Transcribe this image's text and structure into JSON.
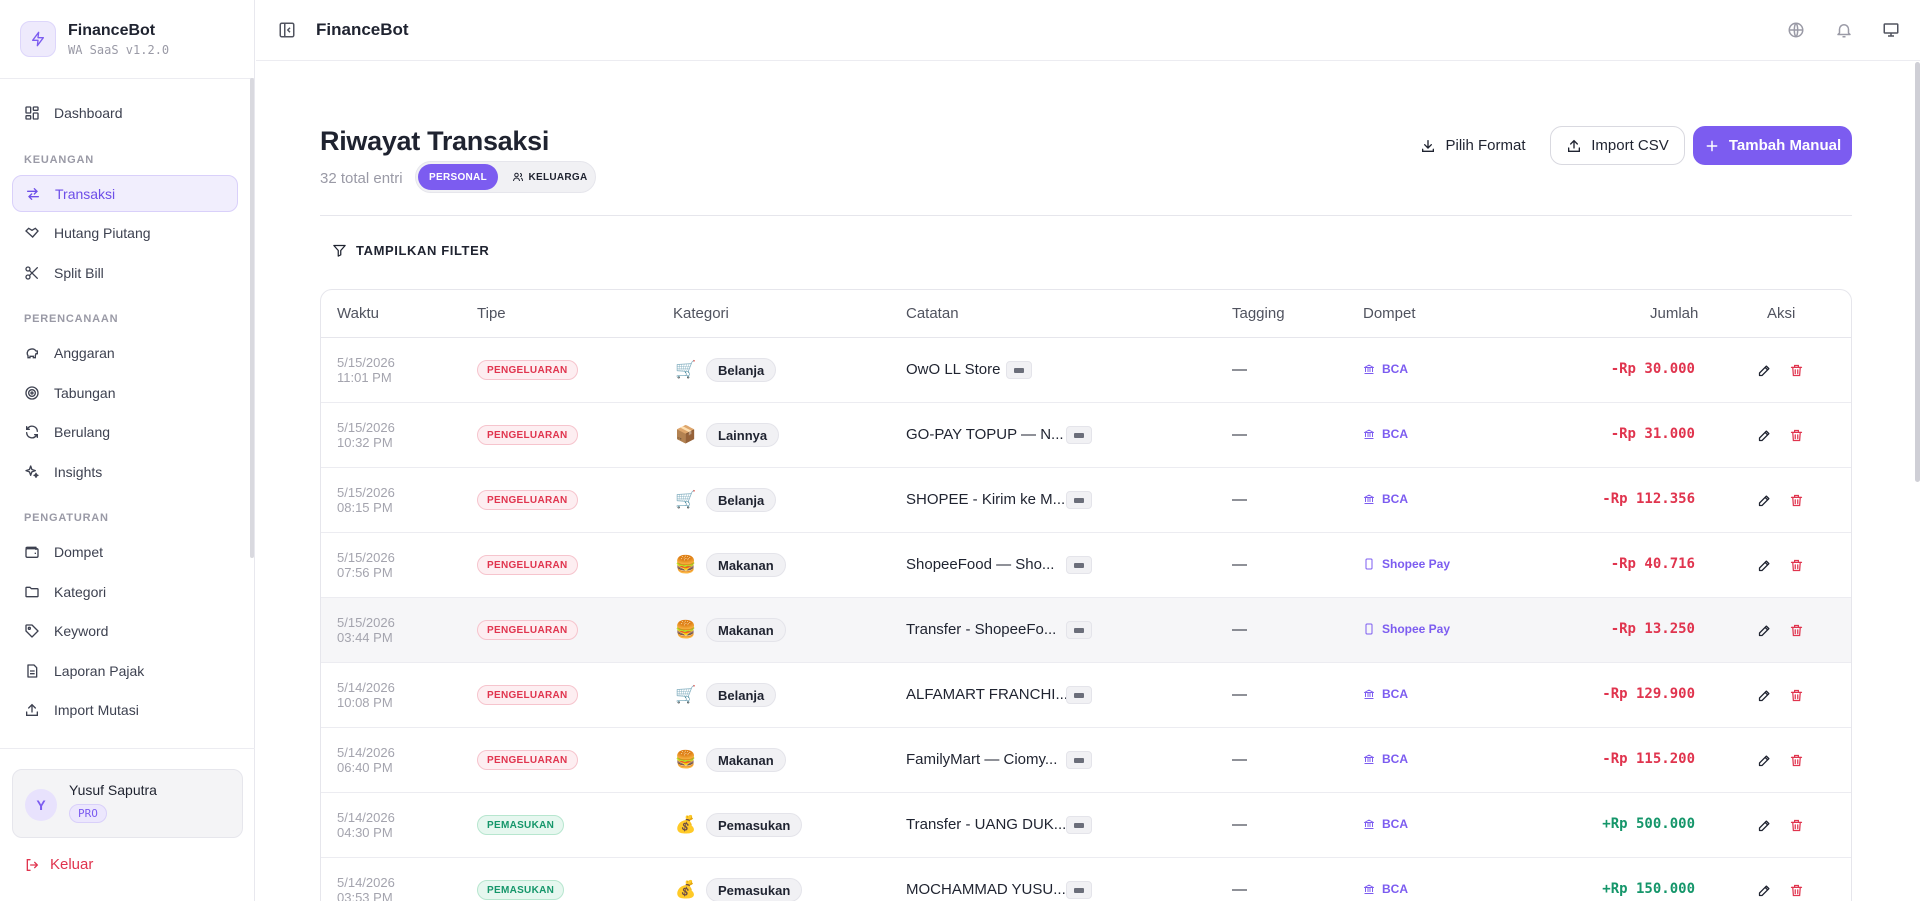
{
  "app": {
    "name": "FinanceBot",
    "version": "WA SaaS v1.2.0"
  },
  "sidebar": {
    "dashboard": "Dashboard",
    "section_keuangan": "KEUANGAN",
    "transaksi": "Transaksi",
    "hutang": "Hutang Piutang",
    "split": "Split Bill",
    "section_perencanaan": "PERENCANAAN",
    "anggaran": "Anggaran",
    "tabungan": "Tabungan",
    "berulang": "Berulang",
    "insights": "Insights",
    "section_pengaturan": "PENGATURAN",
    "dompet": "Dompet",
    "kategori": "Kategori",
    "keyword": "Keyword",
    "laporan": "Laporan Pajak",
    "import_mutasi": "Import Mutasi",
    "user_initial": "Y",
    "user_name": "Yusuf Saputra",
    "user_plan": "PRO",
    "logout": "Keluar"
  },
  "topbar": {
    "title": "FinanceBot"
  },
  "page": {
    "title": "Riwayat Transaksi",
    "entries": "32 total entri",
    "seg_personal": "PERSONAL",
    "seg_keluarga": "KELUARGA",
    "btn_format": "Pilih Format",
    "btn_import": "Import CSV",
    "btn_add": "Tambah Manual",
    "filter": "TAMPILKAN FILTER"
  },
  "table": {
    "headers": {
      "waktu": "Waktu",
      "tipe": "Tipe",
      "kategori": "Kategori",
      "catatan": "Catatan",
      "tagging": "Tagging",
      "dompet": "Dompet",
      "jumlah": "Jumlah",
      "aksi": "Aksi"
    },
    "rows": [
      {
        "date": "5/15/2026",
        "time": "11:01 PM",
        "type": "PENGELUARAN",
        "cat_icon": "🛒",
        "category": "Belanja",
        "note": "OwO LL Store",
        "tag": "—",
        "wallet": "BCA",
        "amount": "-Rp 30.000"
      },
      {
        "date": "5/15/2026",
        "time": "10:32 PM",
        "type": "PENGELUARAN",
        "cat_icon": "📦",
        "category": "Lainnya",
        "note": "GO-PAY TOPUP — N...",
        "tag": "—",
        "wallet": "BCA",
        "amount": "-Rp 31.000"
      },
      {
        "date": "5/15/2026",
        "time": "08:15 PM",
        "type": "PENGELUARAN",
        "cat_icon": "🛒",
        "category": "Belanja",
        "note": "SHOPEE - Kirim ke M...",
        "tag": "—",
        "wallet": "BCA",
        "amount": "-Rp 112.356"
      },
      {
        "date": "5/15/2026",
        "time": "07:56 PM",
        "type": "PENGELUARAN",
        "cat_icon": "🍔",
        "category": "Makanan",
        "note": "ShopeeFood — Sho...",
        "tag": "—",
        "wallet": "Shopee Pay",
        "amount": "-Rp 40.716"
      },
      {
        "date": "5/15/2026",
        "time": "03:44 PM",
        "type": "PENGELUARAN",
        "cat_icon": "🍔",
        "category": "Makanan",
        "note": "Transfer - ShopeeFo...",
        "tag": "—",
        "wallet": "Shopee Pay",
        "amount": "-Rp 13.250"
      },
      {
        "date": "5/14/2026",
        "time": "10:08 PM",
        "type": "PENGELUARAN",
        "cat_icon": "🛒",
        "category": "Belanja",
        "note": "ALFAMART FRANCHI...",
        "tag": "—",
        "wallet": "BCA",
        "amount": "-Rp 129.900"
      },
      {
        "date": "5/14/2026",
        "time": "06:40 PM",
        "type": "PENGELUARAN",
        "cat_icon": "🍔",
        "category": "Makanan",
        "note": "FamilyMart — Ciomy...",
        "tag": "—",
        "wallet": "BCA",
        "amount": "-Rp 115.200"
      },
      {
        "date": "5/14/2026",
        "time": "04:30 PM",
        "type": "PEMASUKAN",
        "cat_icon": "💰",
        "category": "Pemasukan",
        "note": "Transfer - UANG DUK...",
        "tag": "—",
        "wallet": "BCA",
        "amount": "+Rp 500.000"
      },
      {
        "date": "5/14/2026",
        "time": "03:53 PM",
        "type": "PEMASUKAN",
        "cat_icon": "💰",
        "category": "Pemasukan",
        "note": "MOCHAMMAD YUSU...",
        "tag": "—",
        "wallet": "BCA",
        "amount": "+Rp 150.000"
      }
    ]
  }
}
